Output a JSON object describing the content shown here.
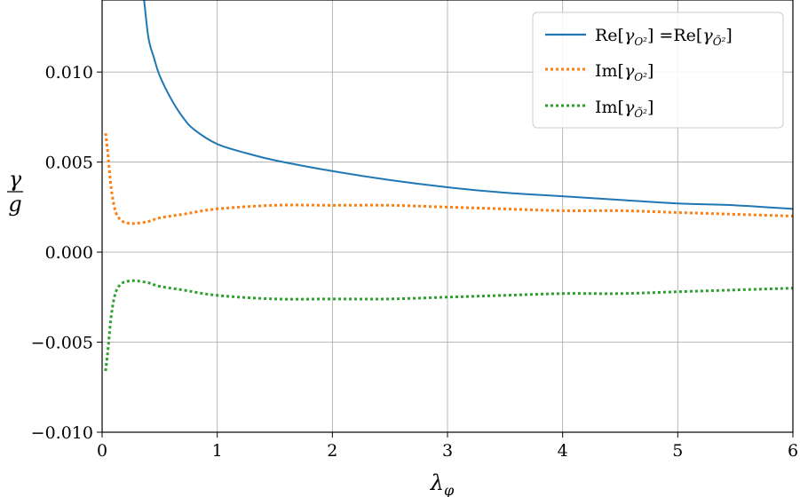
{
  "chart_data": {
    "type": "line",
    "xlabel": "λφ",
    "xlabel_main": "λ",
    "xlabel_sub": "φ",
    "ylabel_num": "γ",
    "ylabel_den": "g",
    "xlim": [
      0,
      6
    ],
    "ylim": [
      -0.01,
      0.014
    ],
    "x_ticks": [
      0,
      1,
      2,
      3,
      4,
      5,
      6
    ],
    "x_tick_labels": [
      "0",
      "1",
      "2",
      "3",
      "4",
      "5",
      "6"
    ],
    "y_ticks": [
      -0.01,
      -0.005,
      0.0,
      0.005,
      0.01
    ],
    "y_tick_labels": [
      "−0.010",
      "−0.005",
      "0.000",
      "0.005",
      "0.010"
    ],
    "grid": true,
    "legend_position": "top-right",
    "series": [
      {
        "name": "Re[γ_{O²}] =Re[γ_{Õ²}]",
        "legend_parts": [
          "Re[",
          "γ",
          "O²",
          "] =Re[",
          "γ",
          "Õ²",
          "]"
        ],
        "color": "#1f77b4",
        "style": "solid",
        "x": [
          0.35,
          0.4,
          0.45,
          0.5,
          0.6,
          0.7,
          0.8,
          1.0,
          1.25,
          1.5,
          2.0,
          2.5,
          3.0,
          3.5,
          4.0,
          4.5,
          5.0,
          5.5,
          6.0
        ],
        "y": [
          0.01495,
          0.012,
          0.0108,
          0.0098,
          0.0085,
          0.0075,
          0.0068,
          0.006,
          0.0055,
          0.0051,
          0.0045,
          0.004,
          0.0036,
          0.0033,
          0.0031,
          0.0029,
          0.0027,
          0.0026,
          0.0024
        ]
      },
      {
        "name": "Im[γ_{O²}]",
        "legend_parts": [
          "Im[",
          "γ",
          "O²",
          "]"
        ],
        "color": "#ff7f0e",
        "style": "dotted",
        "x": [
          0.03,
          0.05,
          0.08,
          0.12,
          0.18,
          0.25,
          0.3,
          0.4,
          0.5,
          0.7,
          1.0,
          1.5,
          2.0,
          2.5,
          3.0,
          3.5,
          4.0,
          4.5,
          5.0,
          5.5,
          6.0
        ],
        "y": [
          0.0066,
          0.0055,
          0.0035,
          0.0022,
          0.0017,
          0.0016,
          0.0016,
          0.0017,
          0.0019,
          0.0021,
          0.0024,
          0.0026,
          0.0026,
          0.0026,
          0.0025,
          0.0024,
          0.0023,
          0.0023,
          0.0022,
          0.0021,
          0.002
        ]
      },
      {
        "name": "Im[γ_{Õ²}]",
        "legend_parts": [
          "Im[",
          "γ",
          "Õ²",
          "]"
        ],
        "color": "#2ca02c",
        "style": "dotted",
        "x": [
          0.03,
          0.05,
          0.08,
          0.12,
          0.18,
          0.25,
          0.3,
          0.4,
          0.5,
          0.7,
          1.0,
          1.5,
          2.0,
          2.5,
          3.0,
          3.5,
          4.0,
          4.5,
          5.0,
          5.5,
          6.0
        ],
        "y": [
          -0.0066,
          -0.0055,
          -0.0035,
          -0.0022,
          -0.0017,
          -0.0016,
          -0.0016,
          -0.0017,
          -0.0019,
          -0.0021,
          -0.0024,
          -0.0026,
          -0.0026,
          -0.0026,
          -0.0025,
          -0.0024,
          -0.0023,
          -0.0023,
          -0.0022,
          -0.0021,
          -0.002
        ]
      }
    ]
  }
}
